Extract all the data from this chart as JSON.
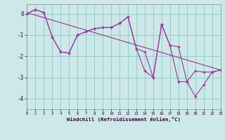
{
  "xlabel": "Windchill (Refroidissement éolien,°C)",
  "background_color": "#cce8e8",
  "grid_color": "#99cccc",
  "line_color": "#993399",
  "xlim": [
    0,
    23
  ],
  "ylim": [
    -4.5,
    0.45
  ],
  "yticks": [
    0,
    -1,
    -2,
    -3,
    -4
  ],
  "xticks": [
    0,
    1,
    2,
    3,
    4,
    5,
    6,
    7,
    8,
    9,
    10,
    11,
    12,
    13,
    14,
    15,
    16,
    17,
    18,
    19,
    20,
    21,
    22,
    23
  ],
  "series1_y": [
    0.0,
    0.2,
    0.05,
    -1.1,
    -1.8,
    -1.85,
    -1.0,
    -0.85,
    -0.7,
    -0.65,
    -0.65,
    -0.45,
    -0.15,
    -1.65,
    -1.8,
    -3.0,
    -0.5,
    -1.5,
    -1.55,
    -3.2,
    -2.7,
    -2.75,
    -2.75,
    -2.65
  ],
  "series2_y": [
    0.0,
    0.2,
    0.05,
    -1.1,
    -1.8,
    -1.85,
    -1.0,
    -0.85,
    -0.7,
    -0.65,
    -0.65,
    -0.45,
    -0.15,
    -1.65,
    -2.7,
    -3.0,
    -0.5,
    -1.5,
    -3.2,
    -3.2,
    -3.9,
    -3.35,
    -2.75,
    -2.65
  ],
  "trend_x": [
    0,
    23
  ],
  "trend_y": [
    0.05,
    -2.65
  ]
}
